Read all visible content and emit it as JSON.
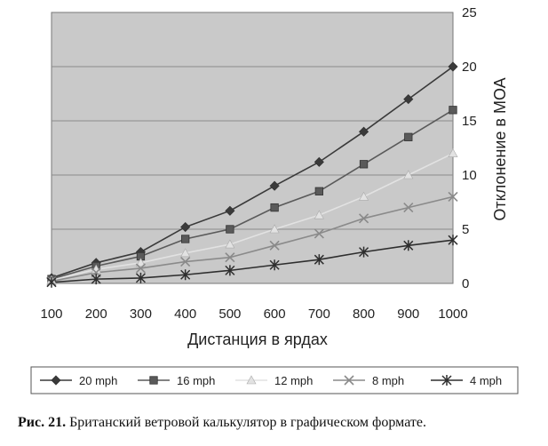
{
  "chart_data": {
    "type": "line",
    "x": [
      100,
      200,
      300,
      400,
      500,
      600,
      700,
      800,
      900,
      1000
    ],
    "xlabel": "Дистанция в ярдах",
    "ylabel": "Отклонение в МОА",
    "ylim": [
      0,
      25
    ],
    "yticks": [
      0,
      5,
      10,
      15,
      20,
      25
    ],
    "grid": true,
    "legend_position": "bottom",
    "series": [
      {
        "name": "20 mph",
        "marker": "diamond",
        "color": "#3a3a3a",
        "values": [
          0.5,
          1.9,
          2.9,
          5.2,
          6.7,
          9.0,
          11.2,
          14.0,
          17.0,
          20.0
        ]
      },
      {
        "name": "16 mph",
        "marker": "square",
        "color": "#5a5a5a",
        "values": [
          0.4,
          1.6,
          2.5,
          4.1,
          5.0,
          7.0,
          8.5,
          11.0,
          13.5,
          16.0
        ]
      },
      {
        "name": "12 mph",
        "marker": "triangle",
        "color": "#e2e2e2",
        "values": [
          0.3,
          1.3,
          1.9,
          2.8,
          3.6,
          5.0,
          6.3,
          8.0,
          10.0,
          12.0
        ]
      },
      {
        "name": "8 mph",
        "marker": "x",
        "color": "#8a8a8a",
        "values": [
          0.2,
          1.0,
          1.4,
          2.0,
          2.4,
          3.5,
          4.6,
          6.0,
          7.0,
          8.0
        ]
      },
      {
        "name": "4 mph",
        "marker": "star",
        "color": "#2e2e2e",
        "values": [
          0.1,
          0.4,
          0.5,
          0.8,
          1.2,
          1.7,
          2.2,
          2.9,
          3.5,
          4.0
        ]
      }
    ]
  },
  "caption": {
    "label": "Рис. 21.",
    "text": " Британский ветровой калькулятор в графическом формате."
  }
}
